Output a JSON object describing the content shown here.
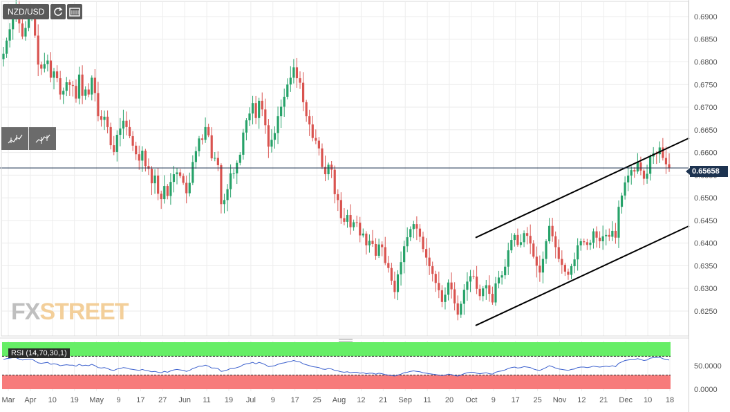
{
  "toolbar": {
    "symbol": "NZD/USD",
    "refresh_icon": "refresh-icon",
    "calendar_icon": "calendar-icon"
  },
  "side_tools": [
    "candle-chart-icon",
    "candle-chart-alt-icon"
  ],
  "logo": {
    "part1": "FX",
    "part2": "STREET"
  },
  "colors": {
    "up": "#26a269",
    "down": "#d9534f",
    "rsi_line": "#3a5fcd",
    "overbought": "#66ee66",
    "oversold": "#f77b7b",
    "price_line": "#1d3350"
  },
  "chart_data": {
    "type": "candlestick",
    "symbol": "NZD/USD",
    "last_price": "0.65658",
    "y_ticks": [
      "0.6900",
      "0.6850",
      "0.6800",
      "0.6750",
      "0.6700",
      "0.6650",
      "0.6600",
      "0.6550",
      "0.6500",
      "0.6450",
      "0.6400",
      "0.6350",
      "0.6300",
      "0.6250"
    ],
    "ylim": [
      0.6195,
      0.6932
    ],
    "x_ticks": [
      "Mar",
      "Apr",
      "10",
      "19",
      "May",
      "9",
      "17",
      "27",
      "Jun",
      "11",
      "19",
      "Jul",
      "9",
      "17",
      "25",
      "Aug",
      "12",
      "21",
      "Sep",
      "11",
      "20",
      "Oct",
      "9",
      "17",
      "25",
      "Nov",
      "12",
      "21",
      "Dec",
      "10",
      "18"
    ],
    "closes": [
      0.6818,
      0.6847,
      0.6872,
      0.6901,
      0.6925,
      0.6885,
      0.6856,
      0.6875,
      0.6905,
      0.691,
      0.6858,
      0.6794,
      0.6785,
      0.6795,
      0.6803,
      0.6765,
      0.6779,
      0.6764,
      0.6728,
      0.6736,
      0.6755,
      0.6749,
      0.6747,
      0.6719,
      0.6772,
      0.6725,
      0.6739,
      0.6728,
      0.6765,
      0.6731,
      0.668,
      0.6672,
      0.6679,
      0.6656,
      0.6616,
      0.6601,
      0.6639,
      0.6653,
      0.667,
      0.6656,
      0.6636,
      0.6615,
      0.6596,
      0.6582,
      0.6604,
      0.657,
      0.6564,
      0.6532,
      0.6549,
      0.6509,
      0.6497,
      0.6526,
      0.6504,
      0.6535,
      0.6552,
      0.6556,
      0.6548,
      0.6533,
      0.651,
      0.6533,
      0.6579,
      0.6603,
      0.6631,
      0.6628,
      0.6656,
      0.6638,
      0.6587,
      0.6588,
      0.6572,
      0.6486,
      0.6495,
      0.6519,
      0.6554,
      0.6554,
      0.6577,
      0.6595,
      0.6644,
      0.6671,
      0.6686,
      0.6709,
      0.6676,
      0.6714,
      0.6695,
      0.666,
      0.6613,
      0.6628,
      0.6643,
      0.668,
      0.6701,
      0.6723,
      0.675,
      0.6765,
      0.6788,
      0.6764,
      0.6754,
      0.6711,
      0.668,
      0.6662,
      0.6632,
      0.6626,
      0.6609,
      0.6568,
      0.6552,
      0.6573,
      0.6562,
      0.6508,
      0.6495,
      0.6455,
      0.6447,
      0.6462,
      0.6435,
      0.6446,
      0.6445,
      0.6417,
      0.6421,
      0.6395,
      0.6405,
      0.6398,
      0.6372,
      0.6397,
      0.6391,
      0.6356,
      0.6345,
      0.6317,
      0.6292,
      0.6331,
      0.6358,
      0.6393,
      0.6413,
      0.6431,
      0.6442,
      0.6432,
      0.6414,
      0.6387,
      0.6368,
      0.6349,
      0.6332,
      0.6312,
      0.6296,
      0.627,
      0.6286,
      0.6313,
      0.6298,
      0.6267,
      0.6242,
      0.6266,
      0.6297,
      0.6315,
      0.6327,
      0.6326,
      0.6299,
      0.6283,
      0.63,
      0.6307,
      0.6288,
      0.6269,
      0.6311,
      0.6324,
      0.6329,
      0.6348,
      0.6384,
      0.6407,
      0.6418,
      0.6396,
      0.6402,
      0.6422,
      0.6416,
      0.6399,
      0.637,
      0.635,
      0.6335,
      0.6365,
      0.6404,
      0.6438,
      0.6415,
      0.6391,
      0.6365,
      0.6352,
      0.6337,
      0.633,
      0.6349,
      0.6364,
      0.6395,
      0.6404,
      0.6402,
      0.6396,
      0.6401,
      0.6426,
      0.6412,
      0.6404,
      0.6415,
      0.6418,
      0.6414,
      0.6427,
      0.6412,
      0.648,
      0.6505,
      0.6534,
      0.6549,
      0.6561,
      0.6558,
      0.6578,
      0.656,
      0.6542,
      0.6553,
      0.6591,
      0.6598,
      0.6596,
      0.6611,
      0.6588,
      0.6574,
      0.6566
    ],
    "channel_upper": {
      "x": [
        "Oct",
        "Dec 18"
      ],
      "y": [
        0.6412,
        0.6632
      ]
    },
    "channel_lower": {
      "x": [
        "Oct",
        "Dec 18"
      ],
      "y": [
        0.6218,
        0.6438
      ]
    },
    "rsi": {
      "label": "RSI (14,70,30,1)",
      "ticks": [
        "50.0000",
        "0.0000"
      ],
      "overbought": 70,
      "oversold": 30,
      "values": [
        63,
        65,
        66,
        67,
        67,
        64,
        62,
        63,
        64,
        64,
        60,
        56,
        55,
        56,
        57,
        53,
        54,
        53,
        50,
        51,
        52,
        51,
        51,
        49,
        53,
        50,
        51,
        50,
        53,
        50,
        46,
        45,
        46,
        44,
        41,
        40,
        43,
        44,
        46,
        45,
        43,
        42,
        41,
        40,
        42,
        40,
        39,
        37,
        38,
        36,
        35,
        38,
        36,
        39,
        41,
        42,
        41,
        40,
        38,
        40,
        44,
        46,
        49,
        49,
        51,
        49,
        45,
        45,
        44,
        38,
        39,
        41,
        44,
        44,
        46,
        48,
        52,
        54,
        55,
        57,
        54,
        57,
        55,
        52,
        48,
        49,
        50,
        53,
        55,
        56,
        58,
        59,
        61,
        59,
        58,
        54,
        52,
        50,
        48,
        47,
        46,
        43,
        42,
        44,
        43,
        40,
        39,
        37,
        36,
        37,
        35,
        36,
        36,
        34,
        35,
        33,
        34,
        34,
        32,
        34,
        33,
        31,
        30,
        29,
        28,
        30,
        32,
        35,
        36,
        38,
        39,
        38,
        37,
        35,
        34,
        33,
        32,
        31,
        30,
        29,
        30,
        32,
        31,
        29,
        28,
        30,
        33,
        35,
        36,
        36,
        34,
        33,
        34,
        35,
        33,
        32,
        36,
        38,
        39,
        41,
        44,
        46,
        47,
        45,
        46,
        48,
        47,
        46,
        43,
        41,
        40,
        43,
        46,
        50,
        48,
        45,
        43,
        42,
        41,
        40,
        42,
        43,
        46,
        47,
        47,
        46,
        47,
        49,
        48,
        47,
        48,
        49,
        48,
        50,
        48,
        55,
        58,
        61,
        62,
        63,
        63,
        65,
        63,
        61,
        62,
        66,
        67,
        67,
        68,
        65,
        63,
        62
      ]
    }
  }
}
